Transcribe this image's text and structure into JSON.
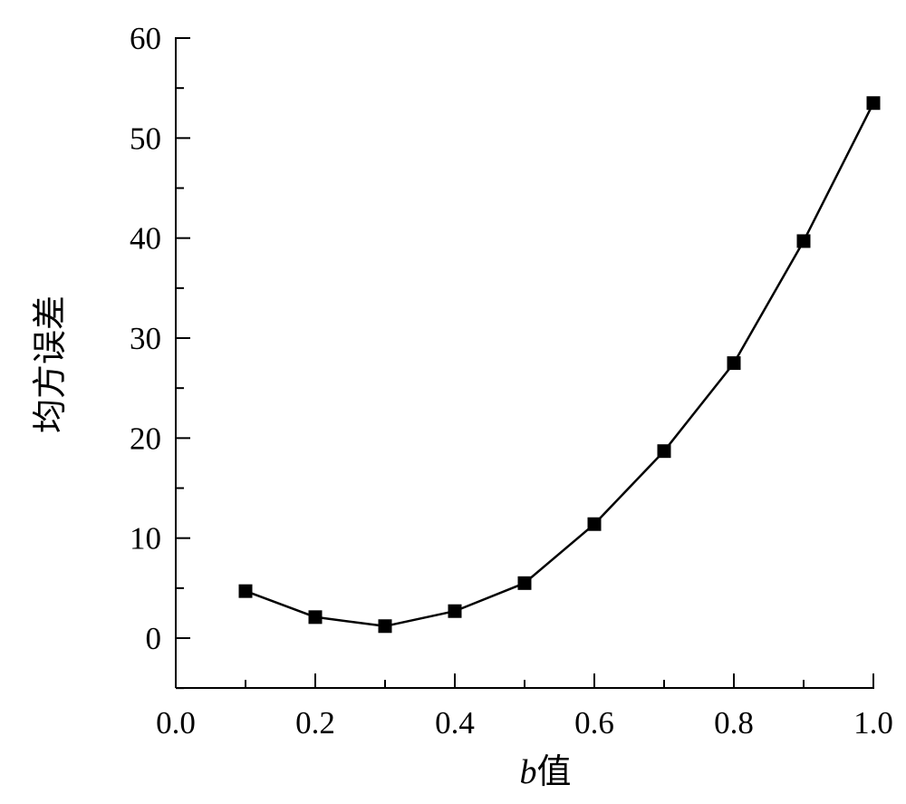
{
  "chart_data": {
    "type": "line",
    "title": "",
    "xlabel_italic": "b",
    "xlabel_rest": "值",
    "ylabel": "均方误差",
    "xlim": [
      0.0,
      1.0
    ],
    "ylim": [
      -5,
      60
    ],
    "x_ticks": [
      "0.0",
      "0.2",
      "0.4",
      "0.6",
      "0.8",
      "1.0"
    ],
    "y_ticks": [
      "0",
      "10",
      "20",
      "30",
      "40",
      "50",
      "60"
    ],
    "grid": false,
    "marker": "square",
    "color": "#000000",
    "series": [
      {
        "x": [
          0.1,
          0.2,
          0.3,
          0.4,
          0.5,
          0.6,
          0.7,
          0.8,
          0.9,
          1.0
        ],
        "y": [
          4.7,
          2.1,
          1.2,
          2.7,
          5.5,
          11.4,
          18.7,
          27.5,
          39.7,
          53.5
        ]
      }
    ]
  }
}
